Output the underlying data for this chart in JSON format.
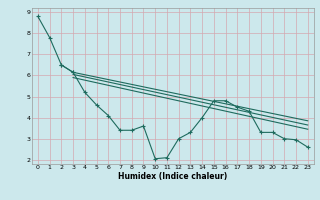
{
  "xlabel": "Humidex (Indice chaleur)",
  "bg_color": "#cce8ec",
  "line_color": "#1e6b5e",
  "grid_color": "#d4a8b0",
  "xlim": [
    -0.5,
    23.5
  ],
  "ylim": [
    1.8,
    9.2
  ],
  "xticks": [
    0,
    1,
    2,
    3,
    4,
    5,
    6,
    7,
    8,
    9,
    10,
    11,
    12,
    13,
    14,
    15,
    16,
    17,
    18,
    19,
    20,
    21,
    22,
    23
  ],
  "yticks": [
    2,
    3,
    4,
    5,
    6,
    7,
    8,
    9
  ],
  "line1_x": [
    0,
    1,
    2,
    3
  ],
  "line1_y": [
    8.8,
    7.8,
    6.5,
    6.15
  ],
  "line2_x": [
    2,
    3,
    4,
    5,
    6,
    7,
    8,
    9,
    10,
    11,
    12,
    13,
    14,
    15,
    16,
    17,
    18,
    19,
    20,
    21,
    22,
    23
  ],
  "line2_y": [
    6.5,
    6.15,
    5.2,
    4.6,
    4.1,
    3.4,
    3.4,
    3.6,
    2.05,
    2.1,
    3.0,
    3.3,
    4.0,
    4.8,
    4.8,
    4.5,
    4.3,
    3.3,
    3.3,
    3.0,
    2.95,
    2.6
  ],
  "line3_x": [
    3,
    23
  ],
  "line3_y": [
    6.15,
    3.85
  ],
  "line4_x": [
    3,
    23
  ],
  "line4_y": [
    6.05,
    3.65
  ],
  "line5_x": [
    3,
    23
  ],
  "line5_y": [
    5.9,
    3.45
  ]
}
